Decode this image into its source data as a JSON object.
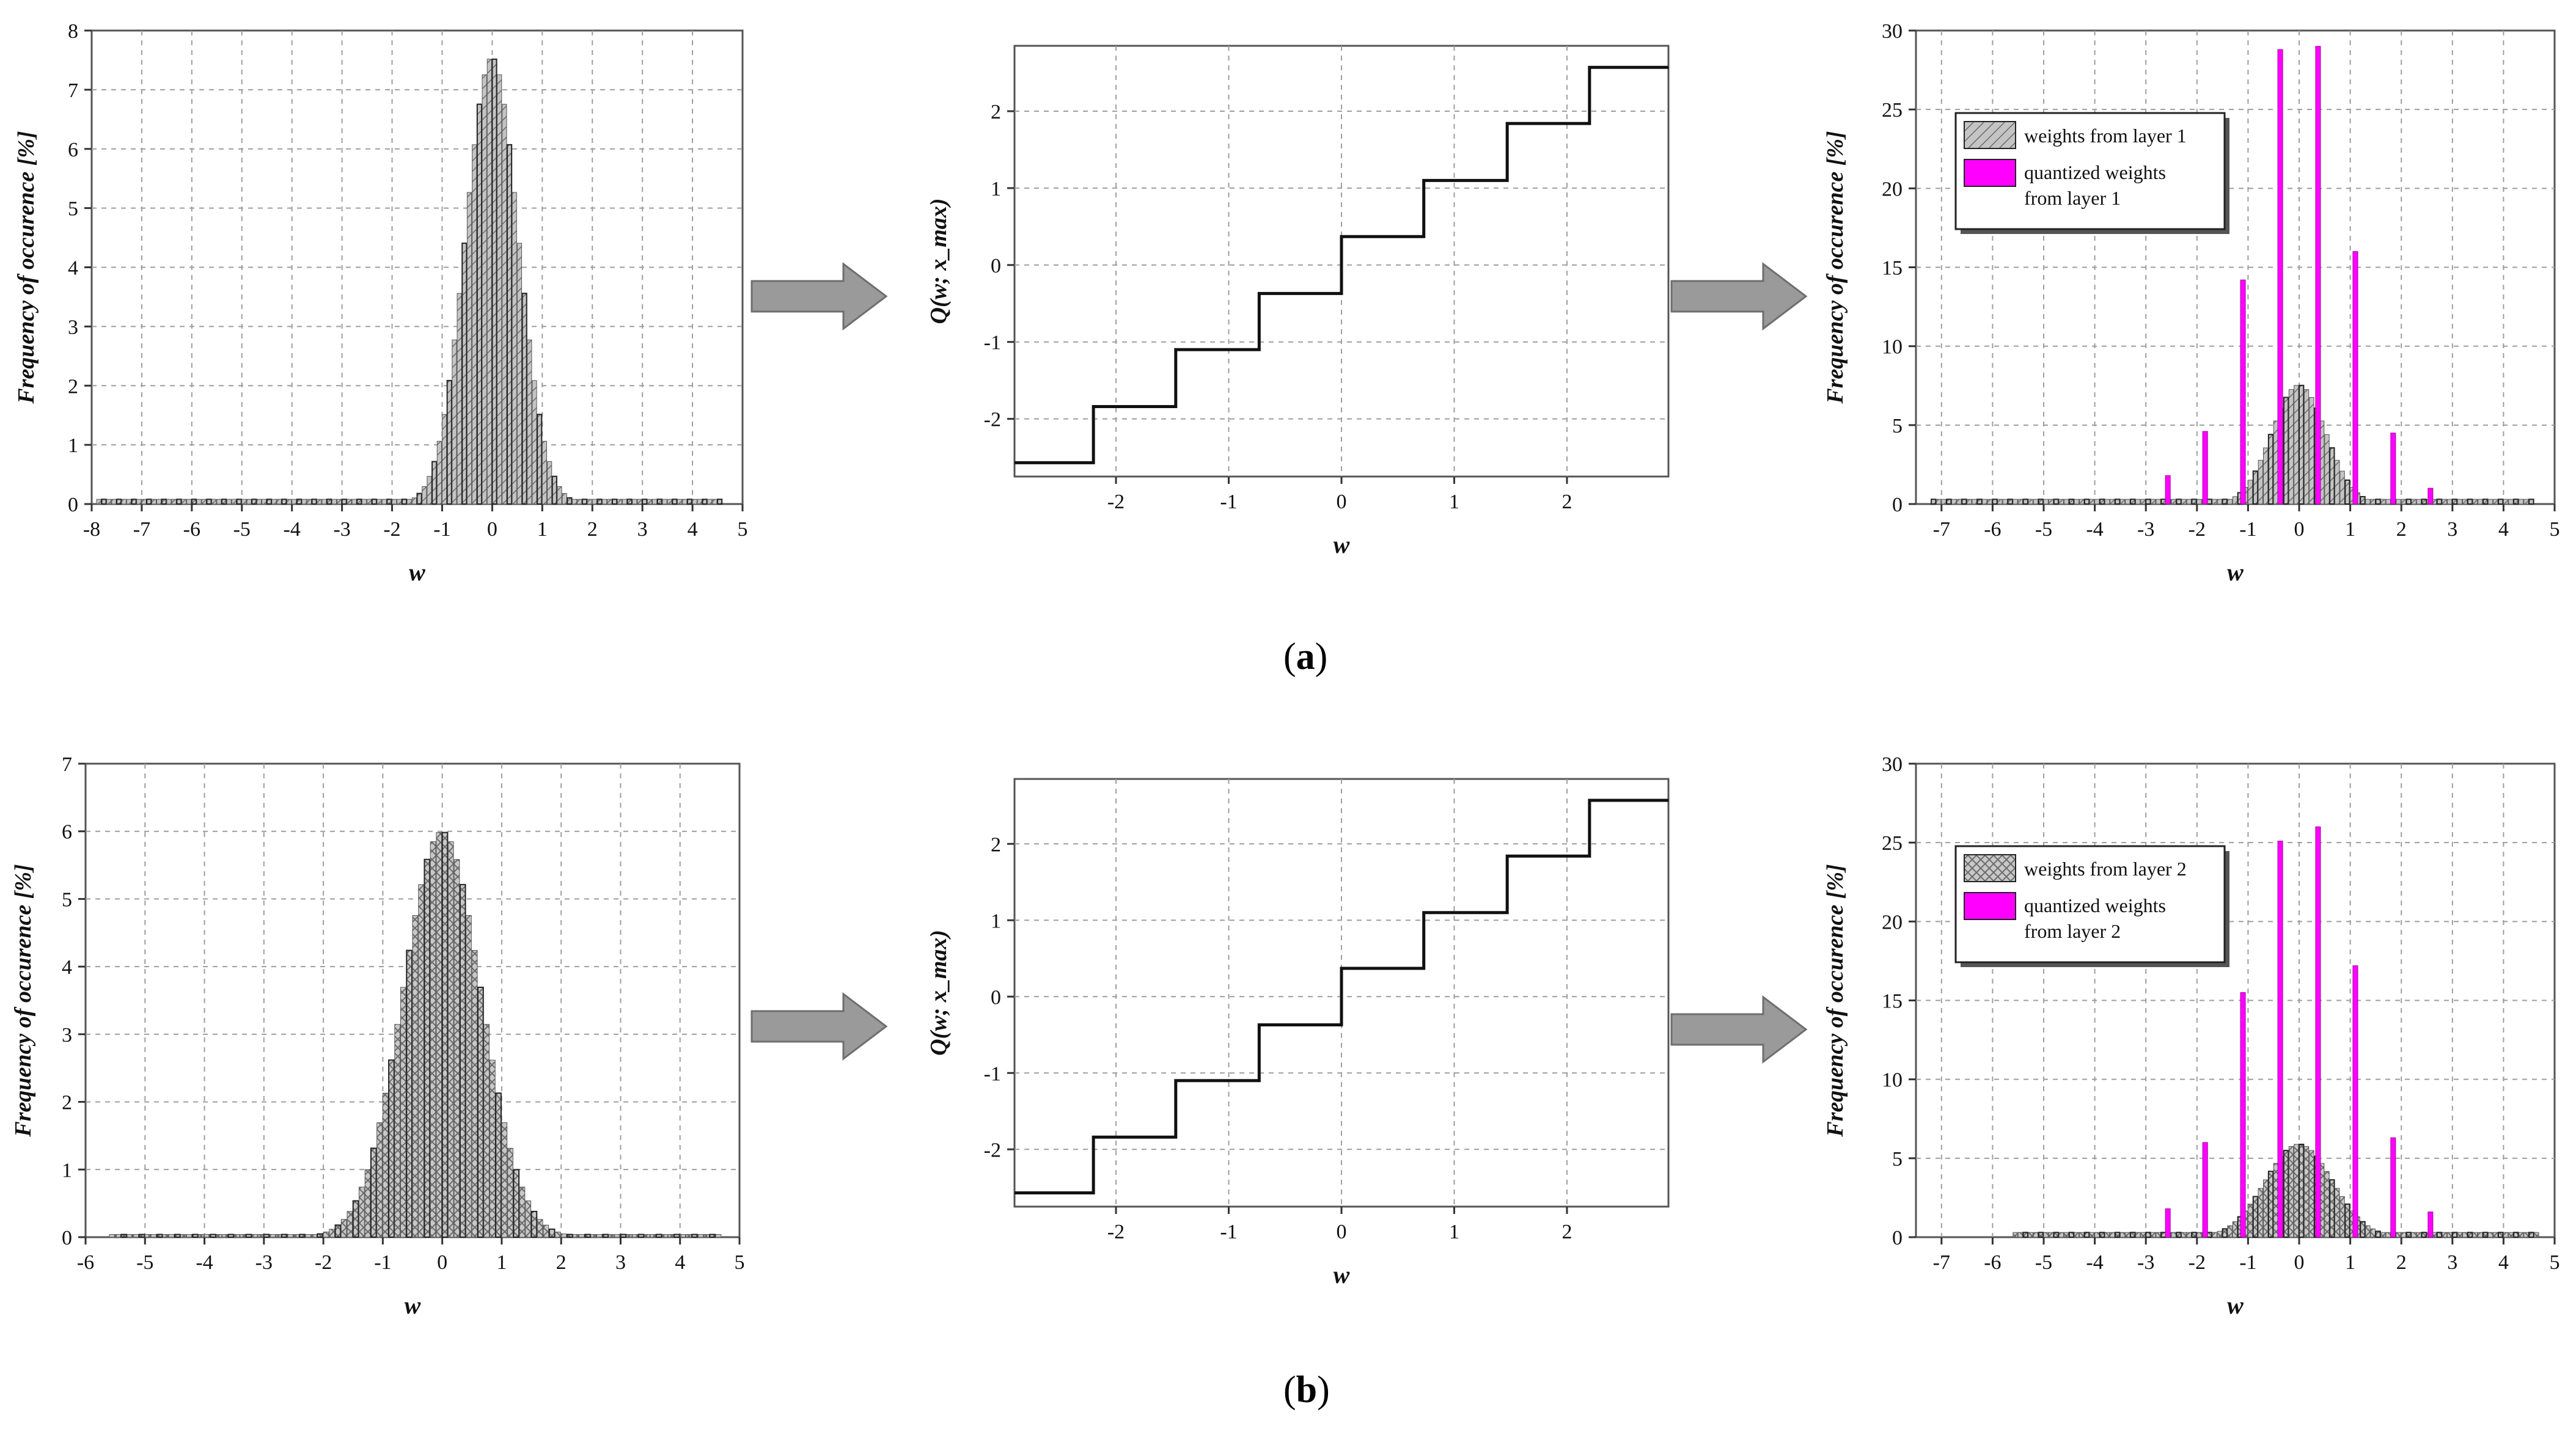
{
  "captions": {
    "a": "a",
    "b": "b"
  },
  "colors": {
    "hist_fill": "#bdbdbd",
    "hist_dark": "#5a5a5a",
    "quantized": "#ff00ff",
    "arrow": "#9a9a9a",
    "grid": "#9e9e9e"
  },
  "chart_data": [
    {
      "id": "a1",
      "type": "bar",
      "panel": "a",
      "xlabel": "w",
      "ylabel": "Frequency of occurence [%]",
      "xlim": [
        -8,
        5
      ],
      "ylim": [
        0,
        8
      ],
      "xticks": [
        "-8",
        "-7",
        "-6",
        "-5",
        "-4",
        "-3",
        "-2",
        "-1",
        "0",
        "1",
        "2",
        "3",
        "4",
        "5"
      ],
      "yticks": [
        "0",
        "1",
        "2",
        "3",
        "4",
        "5",
        "6",
        "7",
        "8"
      ],
      "grid": true,
      "hist": {
        "mean": 0,
        "sd": 0.53,
        "peak": 7.55,
        "bin": 0.1,
        "range": [
          -7.9,
          4.6
        ],
        "baseline": 0.08
      }
    },
    {
      "id": "a2",
      "type": "line",
      "panel": "a",
      "xlabel": "w",
      "ylabel": "Q(w; x_max)",
      "xlim": [
        -2.9,
        2.9
      ],
      "ylim": [
        -2.75,
        2.85
      ],
      "xticks": [
        "-2",
        "-1",
        "0",
        "1",
        "2"
      ],
      "yticks": [
        "-2",
        "-1",
        "0",
        "1",
        "2"
      ],
      "grid": true,
      "steps": {
        "thresholds": [
          -2.9,
          -2.2,
          -1.47,
          -0.73,
          0,
          0.73,
          1.47,
          2.2,
          2.9
        ],
        "levels": [
          -2.57,
          -1.84,
          -1.1,
          -0.37,
          0.37,
          1.1,
          1.84,
          2.57
        ]
      }
    },
    {
      "id": "a3",
      "type": "bar",
      "panel": "a",
      "xlabel": "w",
      "ylabel": "Frequency of occurence [%]",
      "xlim": [
        -7.5,
        5
      ],
      "ylim": [
        0,
        30
      ],
      "xticks": [
        "-7",
        "-6",
        "-5",
        "-4",
        "-3",
        "-2",
        "-1",
        "0",
        "1",
        "2",
        "3",
        "4",
        "5"
      ],
      "yticks": [
        "0",
        "5",
        "10",
        "15",
        "20",
        "25",
        "30"
      ],
      "grid": true,
      "legend": {
        "position": "top-left",
        "entries": [
          "weights from layer 1",
          "quantized weights",
          "from layer 1"
        ]
      },
      "hist": {
        "mean": 0,
        "sd": 0.53,
        "peak": 7.55,
        "bin": 0.1,
        "range": [
          -7.2,
          4.6
        ],
        "baseline": 0.3
      },
      "quantized": {
        "x": [
          -2.57,
          -1.84,
          -1.1,
          -0.37,
          0.37,
          1.1,
          1.84,
          2.57
        ],
        "values": [
          1.8,
          4.6,
          14.2,
          28.8,
          29.0,
          16.0,
          4.5,
          1.0
        ]
      }
    },
    {
      "id": "b1",
      "type": "bar",
      "panel": "b",
      "xlabel": "w",
      "ylabel": "Frequency of occurence [%]",
      "xlim": [
        -6,
        5
      ],
      "ylim": [
        0,
        7
      ],
      "xticks": [
        "-6",
        "-5",
        "-4",
        "-3",
        "-2",
        "-1",
        "0",
        "1",
        "2",
        "3",
        "4",
        "5"
      ],
      "yticks": [
        "0",
        "1",
        "2",
        "3",
        "4",
        "5",
        "6",
        "7"
      ],
      "grid": true,
      "hist": {
        "mean": 0,
        "sd": 0.66,
        "peak": 6.0,
        "bin": 0.1,
        "range": [
          -5.6,
          4.7
        ],
        "baseline": 0.04
      }
    },
    {
      "id": "b2",
      "type": "line",
      "panel": "b",
      "xlabel": "w",
      "ylabel": "Q(w; x_max)",
      "xlim": [
        -2.9,
        2.9
      ],
      "ylim": [
        -2.75,
        2.85
      ],
      "xticks": [
        "-2",
        "-1",
        "0",
        "1",
        "2"
      ],
      "yticks": [
        "-2",
        "-1",
        "0",
        "1",
        "2"
      ],
      "grid": true,
      "steps": {
        "thresholds": [
          -2.9,
          -2.2,
          -1.47,
          -0.73,
          0,
          0.73,
          1.47,
          2.2,
          2.9
        ],
        "levels": [
          -2.57,
          -1.84,
          -1.1,
          -0.37,
          0.37,
          1.1,
          1.84,
          2.57
        ]
      }
    },
    {
      "id": "b3",
      "type": "bar",
      "panel": "b",
      "xlabel": "w",
      "ylabel": "Frequency of occurence [%]",
      "xlim": [
        -7.5,
        5
      ],
      "ylim": [
        0,
        30
      ],
      "xticks": [
        "-7",
        "-6",
        "-5",
        "-4",
        "-3",
        "-2",
        "-1",
        "0",
        "1",
        "2",
        "3",
        "4",
        "5"
      ],
      "yticks": [
        "0",
        "5",
        "10",
        "15",
        "20",
        "25",
        "30"
      ],
      "grid": true,
      "legend": {
        "position": "top-left",
        "entries": [
          "weights from layer 2",
          "quantized weights",
          "from layer 2"
        ]
      },
      "hist": {
        "mean": 0,
        "sd": 0.66,
        "peak": 5.9,
        "bin": 0.1,
        "range": [
          -5.6,
          4.7
        ],
        "baseline": 0.3
      },
      "quantized": {
        "x": [
          -2.57,
          -1.84,
          -1.1,
          -0.37,
          0.37,
          1.1,
          1.84,
          2.57
        ],
        "values": [
          1.8,
          6.0,
          15.5,
          25.1,
          26.0,
          17.2,
          6.3,
          1.6
        ]
      }
    }
  ]
}
